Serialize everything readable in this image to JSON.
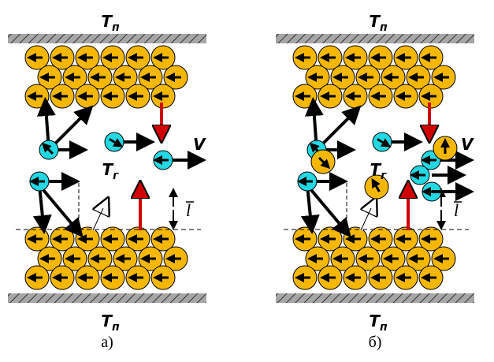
{
  "panels": [
    {
      "caption": "а)",
      "wall_top": {
        "main": "T",
        "sub": "п"
      },
      "wall_bottom": {
        "main": "T",
        "sub": "п"
      },
      "gas": {
        "main": "T",
        "sub": "г"
      },
      "velocity": "V",
      "free_path": "l"
    },
    {
      "caption": "б)",
      "wall_top": {
        "main": "T",
        "sub": "п"
      },
      "wall_bottom": {
        "main": "T",
        "sub": "п"
      },
      "gas": {
        "main": "T",
        "sub": "г"
      },
      "velocity": "V",
      "free_path": "l"
    }
  ]
}
